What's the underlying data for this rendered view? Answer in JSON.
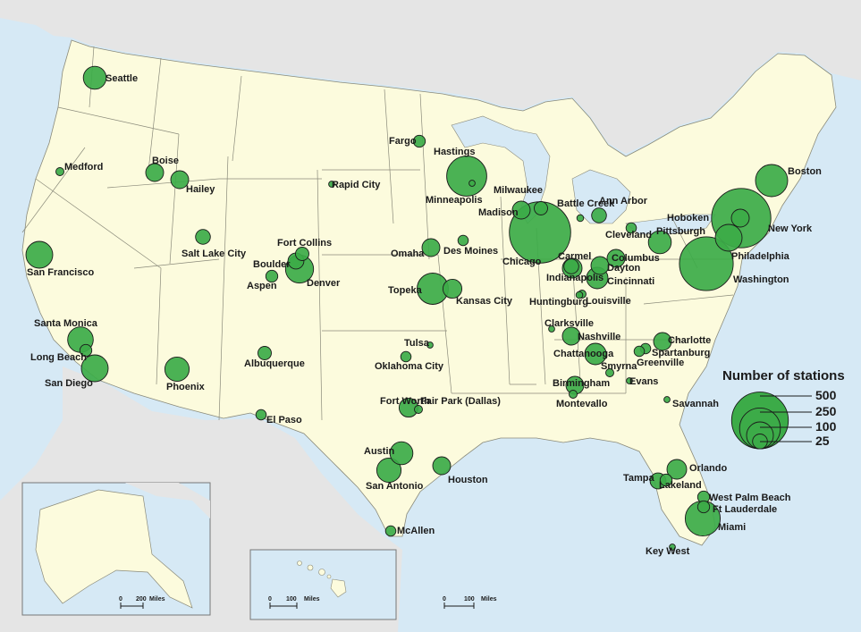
{
  "legend": {
    "title": "Number of stations",
    "values": [
      "500",
      "250",
      "100",
      "25"
    ]
  },
  "scales": {
    "alaska": {
      "zero": "0",
      "dist": "200",
      "unit": "Miles"
    },
    "hawaii": {
      "zero": "0",
      "dist": "100",
      "unit": "Miles"
    },
    "pr": {
      "zero": "0",
      "dist": "100",
      "unit": "Miles"
    }
  },
  "colors": {
    "bubble": "#3cab48",
    "land": "#fcfbdd",
    "water": "#d6e9f5",
    "other_land": "#e5e5e5"
  },
  "cities": [
    {
      "name": "Seattle",
      "stations": 70
    },
    {
      "name": "Medford",
      "stations": 5
    },
    {
      "name": "Boise",
      "stations": 40
    },
    {
      "name": "Hailey",
      "stations": 40
    },
    {
      "name": "San Francisco",
      "stations": 100
    },
    {
      "name": "Santa Monica",
      "stations": 90
    },
    {
      "name": "Long Beach",
      "stations": 15
    },
    {
      "name": "San Diego",
      "stations": 100
    },
    {
      "name": "Phoenix",
      "stations": 80
    },
    {
      "name": "Salt Lake City",
      "stations": 25
    },
    {
      "name": "Fort Collins",
      "stations": 20
    },
    {
      "name": "Boulder",
      "stations": 30
    },
    {
      "name": "Denver",
      "stations": 110
    },
    {
      "name": "Aspen",
      "stations": 15
    },
    {
      "name": "Albuquerque",
      "stations": 20
    },
    {
      "name": "El Paso",
      "stations": 10
    },
    {
      "name": "Rapid City",
      "stations": 2
    },
    {
      "name": "Fargo",
      "stations": 15
    },
    {
      "name": "Hastings",
      "stations": 2
    },
    {
      "name": "Minneapolis",
      "stations": 240
    },
    {
      "name": "Omaha",
      "stations": 40
    },
    {
      "name": "Des Moines",
      "stations": 10
    },
    {
      "name": "Topeka",
      "stations": 140
    },
    {
      "name": "Kansas City",
      "stations": 45
    },
    {
      "name": "Tulsa",
      "stations": 2
    },
    {
      "name": "Oklahoma City",
      "stations": 10
    },
    {
      "name": "Fort Worth",
      "stations": 45
    },
    {
      "name": "Fair Park (Dallas)",
      "stations": 5
    },
    {
      "name": "Austin",
      "stations": 70
    },
    {
      "name": "San Antonio",
      "stations": 80
    },
    {
      "name": "Houston",
      "stations": 40
    },
    {
      "name": "McAllen",
      "stations": 10
    },
    {
      "name": "Madison",
      "stations": 40
    },
    {
      "name": "Milwaukee",
      "stations": 20
    },
    {
      "name": "Chicago",
      "stations": 590
    },
    {
      "name": "Battle Creek",
      "stations": 3
    },
    {
      "name": "Ann Arbor",
      "stations": 25
    },
    {
      "name": "Carmel",
      "stations": 25
    },
    {
      "name": "Indianapolis",
      "stations": 50
    },
    {
      "name": "Huntingburg",
      "stations": 3
    },
    {
      "name": "Louisville",
      "stations": 5
    },
    {
      "name": "Dayton",
      "stations": 40
    },
    {
      "name": "Cincinnati",
      "stations": 60
    },
    {
      "name": "Columbus",
      "stations": 40
    },
    {
      "name": "Cleveland",
      "stations": 10
    },
    {
      "name": "Pittsburgh",
      "stations": 70
    },
    {
      "name": "Hoboken",
      "stations": 40
    },
    {
      "name": "New York",
      "stations": 550
    },
    {
      "name": "Philadelphia",
      "stations": 100
    },
    {
      "name": "Washington",
      "stations": 450
    },
    {
      "name": "Boston",
      "stations": 150
    },
    {
      "name": "Clarksville",
      "stations": 2
    },
    {
      "name": "Nashville",
      "stations": 40
    },
    {
      "name": "Chattanooga",
      "stations": 60
    },
    {
      "name": "Birmingham",
      "stations": 40
    },
    {
      "name": "Montevallo",
      "stations": 5
    },
    {
      "name": "Smyrna",
      "stations": 5
    },
    {
      "name": "Charlotte",
      "stations": 40
    },
    {
      "name": "Spartanburg",
      "stations": 10
    },
    {
      "name": "Greenville",
      "stations": 10
    },
    {
      "name": "Evans",
      "stations": 2
    },
    {
      "name": "Savannah",
      "stations": 2
    },
    {
      "name": "Orlando",
      "stations": 50
    },
    {
      "name": "Tampa",
      "stations": 30
    },
    {
      "name": "Lakeland",
      "stations": 15
    },
    {
      "name": "West Palm Beach",
      "stations": 15
    },
    {
      "name": "Ft Lauderdale",
      "stations": 15
    },
    {
      "name": "Miami",
      "stations": 180
    },
    {
      "name": "Key West",
      "stations": 2
    }
  ]
}
